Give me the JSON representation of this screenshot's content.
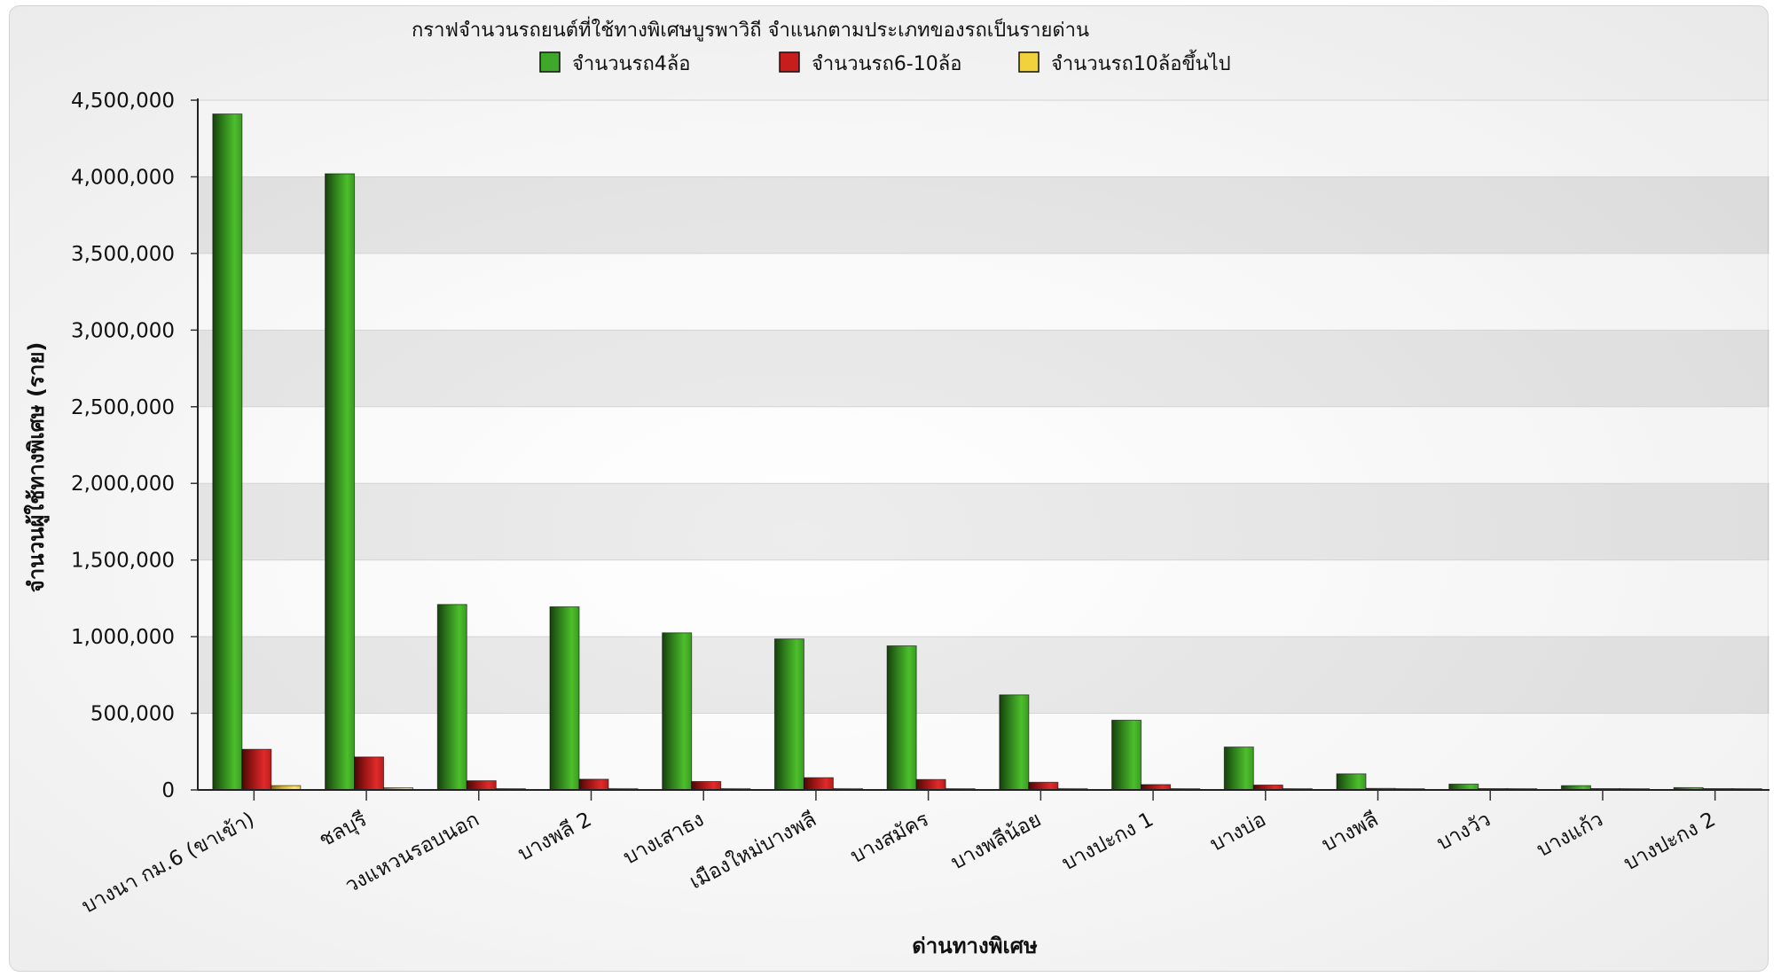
{
  "chart_data": {
    "type": "bar",
    "title": "กราฟจำนวนรถยนต์ที่ใช้ทางพิเศษบูรพาวิถี จำแนกตามประเภทของรถเป็นรายด่าน",
    "xlabel": "ด่านทางพิเศษ",
    "ylabel": "จำนวนผู้ใช้ทางพิเศษ (ราย)",
    "ylim": [
      0,
      4500000
    ],
    "ytick_values": [
      0,
      500000,
      1000000,
      1500000,
      2000000,
      2500000,
      3000000,
      3500000,
      4000000,
      4500000
    ],
    "ytick_labels": [
      "0",
      "500,000",
      "1,000,000",
      "1,500,000",
      "2,000,000",
      "2,500,000",
      "3,000,000",
      "3,500,000",
      "4,000,000",
      "4,500,000"
    ],
    "grid": true,
    "legend_position": "top",
    "categories": [
      "บางนา กม.6 (ขาเข้า)",
      "ชลบุรี",
      "วงแหวนรอบนอก",
      "บางพลี 2",
      "บางเสาธง",
      "เมืองใหม่บางพลี",
      "บางสมัคร",
      "บางพลีน้อย",
      "บางปะกง 1",
      "บางบ่อ",
      "บางพลี",
      "บางวัว",
      "บางแก้ว",
      "บางปะกง 2"
    ],
    "series": [
      {
        "name": "จำนวนรถ4ล้อ",
        "color": "#3fa82a",
        "values": [
          4410000,
          4020000,
          1210000,
          1195000,
          1025000,
          985000,
          940000,
          620000,
          455000,
          280000,
          105000,
          38000,
          28000,
          15000
        ]
      },
      {
        "name": "จำนวนรถ6-10ล้อ",
        "color": "#c81d1d",
        "values": [
          265000,
          215000,
          60000,
          70000,
          55000,
          80000,
          68000,
          50000,
          35000,
          32000,
          10000,
          4000,
          5000,
          2000
        ]
      },
      {
        "name": "จำนวนรถ10ล้อขึ้นไป",
        "color": "#f2d23c",
        "values": [
          28000,
          14000,
          3000,
          9000,
          9000,
          9000,
          7000,
          9000,
          2000,
          2000,
          1000,
          500,
          500,
          300
        ]
      }
    ]
  }
}
